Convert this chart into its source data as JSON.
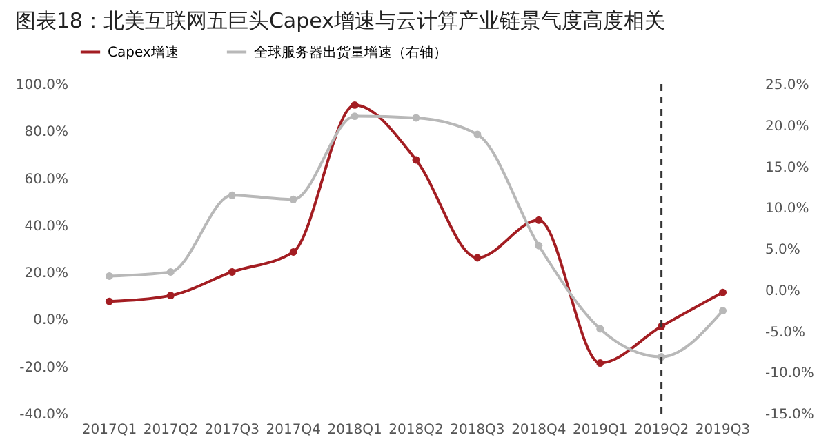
{
  "chart_data": {
    "type": "line",
    "title": "图表18：北美互联网五巨头Capex增速与云计算产业链景气度高度相关",
    "categories": [
      "2017Q1",
      "2017Q2",
      "2017Q3",
      "2017Q4",
      "2018Q1",
      "2018Q2",
      "2018Q3",
      "2018Q4",
      "2019Q1",
      "2019Q2",
      "2019Q3"
    ],
    "series": [
      {
        "name": "Capex增速",
        "color": "#a31d22",
        "values": [
          7.7,
          10.2,
          20.2,
          28.7,
          91.1,
          67.8,
          26.2,
          42.2,
          -18.5,
          -2.9,
          11.5
        ]
      },
      {
        "name": "全球服务器出货量增速（右轴）",
        "color": "#b8b8b8",
        "axis": "y2",
        "values": [
          1.7,
          2.2,
          11.5,
          11.0,
          21.1,
          20.9,
          18.9,
          5.4,
          -4.7,
          -8.1,
          -2.5
        ]
      }
    ],
    "ylim": [
      -40,
      100
    ],
    "yticks": [
      {
        "value": -40,
        "label": "-40.0%"
      },
      {
        "value": -20,
        "label": "-20.0%"
      },
      {
        "value": 0,
        "label": "0.0%"
      },
      {
        "value": 20,
        "label": "20.0%"
      },
      {
        "value": 40,
        "label": "40.0%"
      },
      {
        "value": 60,
        "label": "60.0%"
      },
      {
        "value": 80,
        "label": "80.0%"
      },
      {
        "value": 100,
        "label": "100.0%"
      }
    ],
    "y2lim": [
      -15,
      25
    ],
    "y2ticks": [
      {
        "value": -15,
        "label": "-15.0%"
      },
      {
        "value": -10,
        "label": "-10.0%"
      },
      {
        "value": -5,
        "label": "-5.0%"
      },
      {
        "value": 0,
        "label": "0.0%"
      },
      {
        "value": 5,
        "label": "5.0%"
      },
      {
        "value": 10,
        "label": "10.0%"
      },
      {
        "value": 15,
        "label": "15.0%"
      },
      {
        "value": 20,
        "label": "20.0%"
      },
      {
        "value": 25,
        "label": "25.0%"
      }
    ],
    "ref_lines": [
      {
        "axis": "x",
        "value": "2019Q2",
        "color": "#333333",
        "line_style": "dashed"
      }
    ],
    "legend": "top",
    "grid": false,
    "marker": "circle",
    "line_style": "solid"
  }
}
